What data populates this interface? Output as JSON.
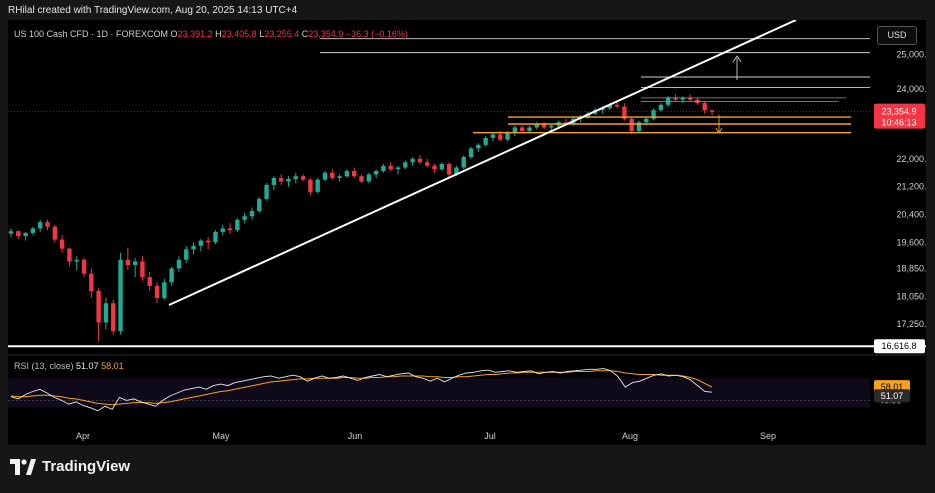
{
  "header": {
    "attribution": "RHilal created with TradingView.com, Aug 20, 2025 14:13 UTC+4"
  },
  "legend": {
    "symbol": "US 100 Cash CFD · 1D · FOREXCOM",
    "o_label": "O",
    "o": "23,391.2",
    "h_label": "H",
    "h": "23,405.8",
    "l_label": "L",
    "l": "23,255.4",
    "c_label": "C",
    "c": "23,354.9",
    "change": "−36.3 (−0.16%)"
  },
  "currency": "USD",
  "price_axis": {
    "ticks": [
      "25,000.0",
      "24,000.0",
      "22,000.0",
      "21,200.0",
      "20,400.0",
      "19,600.0",
      "18,850.0",
      "18,050.0",
      "17,250.0"
    ],
    "tick_values": [
      25000,
      24000,
      22000,
      21200,
      20400,
      19600,
      18850,
      18050,
      17250
    ],
    "last_price_label": "23,354.9",
    "countdown": "10:46:13",
    "support_label": "16,616.8"
  },
  "rsi": {
    "label": "RSI (13, close)",
    "value": "51.07",
    "ma_value": "58.01",
    "axis_label": "40.00"
  },
  "time_axis": {
    "labels": [
      "Apr",
      "May",
      "Jun",
      "Jul",
      "Aug",
      "Sep"
    ]
  },
  "colors": {
    "up": "#22ab94",
    "down": "#f23645",
    "rsi": "#e8e8e8",
    "rsi_ma": "#f7a21b",
    "level": "#f7a21b",
    "trend": "#ffffff"
  },
  "brand": "TradingView",
  "chart_data": {
    "type": "candlestick",
    "timeframe": "1D",
    "last_close": 23354.9,
    "support_level": 16616.8,
    "candles": [
      [
        19850,
        20000,
        19750,
        19920
      ],
      [
        19920,
        19950,
        19700,
        19780
      ],
      [
        19780,
        19900,
        19650,
        19870
      ],
      [
        19870,
        20050,
        19800,
        20000
      ],
      [
        20000,
        20250,
        19900,
        20180
      ],
      [
        20180,
        20250,
        19950,
        20050
      ],
      [
        20050,
        20100,
        19600,
        19680
      ],
      [
        19680,
        19800,
        19300,
        19420
      ],
      [
        19420,
        19450,
        18900,
        19050
      ],
      [
        19050,
        19200,
        18800,
        19100
      ],
      [
        19100,
        19150,
        18600,
        18700
      ],
      [
        18700,
        18850,
        18000,
        18200
      ],
      [
        18200,
        18300,
        16750,
        17300
      ],
      [
        17300,
        18000,
        17100,
        17850
      ],
      [
        17850,
        17950,
        16950,
        17050
      ],
      [
        17050,
        19300,
        16950,
        19100
      ],
      [
        19100,
        19450,
        18800,
        18950
      ],
      [
        18950,
        19150,
        18600,
        19050
      ],
      [
        19050,
        19200,
        18500,
        18600
      ],
      [
        18600,
        18750,
        18200,
        18350
      ],
      [
        18350,
        18450,
        17850,
        18000
      ],
      [
        18000,
        18550,
        17950,
        18450
      ],
      [
        18450,
        18900,
        18350,
        18850
      ],
      [
        18850,
        19200,
        18750,
        19100
      ],
      [
        19100,
        19500,
        19000,
        19400
      ],
      [
        19400,
        19600,
        19250,
        19500
      ],
      [
        19500,
        19700,
        19350,
        19650
      ],
      [
        19650,
        19750,
        19400,
        19600
      ],
      [
        19600,
        19950,
        19550,
        19900
      ],
      [
        19900,
        20100,
        19800,
        20000
      ],
      [
        20000,
        20150,
        19850,
        19950
      ],
      [
        19950,
        20300,
        19900,
        20250
      ],
      [
        20250,
        20450,
        20150,
        20350
      ],
      [
        20350,
        20600,
        20250,
        20500
      ],
      [
        20500,
        20900,
        20450,
        20850
      ],
      [
        20850,
        21300,
        20800,
        21250
      ],
      [
        21250,
        21500,
        21100,
        21450
      ],
      [
        21450,
        21550,
        21250,
        21350
      ],
      [
        21350,
        21500,
        21200,
        21420
      ],
      [
        21420,
        21600,
        21300,
        21500
      ],
      [
        21500,
        21550,
        21350,
        21400
      ],
      [
        21400,
        21450,
        20950,
        21050
      ],
      [
        21050,
        21450,
        21000,
        21400
      ],
      [
        21400,
        21650,
        21350,
        21600
      ],
      [
        21600,
        21700,
        21400,
        21450
      ],
      [
        21450,
        21550,
        21350,
        21500
      ],
      [
        21500,
        21700,
        21450,
        21650
      ],
      [
        21650,
        21750,
        21450,
        21500
      ],
      [
        21500,
        21550,
        21300,
        21350
      ],
      [
        21350,
        21600,
        21300,
        21550
      ],
      [
        21550,
        21700,
        21450,
        21650
      ],
      [
        21650,
        21850,
        21600,
        21800
      ],
      [
        21800,
        21900,
        21650,
        21700
      ],
      [
        21700,
        21800,
        21550,
        21750
      ],
      [
        21750,
        21950,
        21700,
        21900
      ],
      [
        21900,
        22050,
        21800,
        22000
      ],
      [
        22000,
        22100,
        21850,
        21900
      ],
      [
        21900,
        22000,
        21750,
        21800
      ],
      [
        21800,
        21850,
        21600,
        21700
      ],
      [
        21700,
        21900,
        21650,
        21850
      ],
      [
        21850,
        21900,
        21450,
        21550
      ],
      [
        21550,
        21800,
        21500,
        21750
      ],
      [
        21750,
        22100,
        21700,
        22050
      ],
      [
        22050,
        22350,
        22000,
        22300
      ],
      [
        22300,
        22450,
        22200,
        22400
      ],
      [
        22400,
        22650,
        22350,
        22600
      ],
      [
        22600,
        22750,
        22500,
        22700
      ],
      [
        22700,
        22800,
        22500,
        22550
      ],
      [
        22550,
        22800,
        22500,
        22750
      ],
      [
        22750,
        22950,
        22650,
        22900
      ],
      [
        22900,
        22950,
        22750,
        22800
      ],
      [
        22800,
        22950,
        22750,
        22900
      ],
      [
        22900,
        23050,
        22850,
        23000
      ],
      [
        23000,
        23050,
        22850,
        22900
      ],
      [
        22900,
        23000,
        22800,
        22950
      ],
      [
        22950,
        23100,
        22900,
        23050
      ],
      [
        23050,
        23150,
        22950,
        23000
      ],
      [
        23000,
        23200,
        22950,
        23150
      ],
      [
        23150,
        23250,
        23050,
        23200
      ],
      [
        23200,
        23350,
        23150,
        23300
      ],
      [
        23300,
        23450,
        23250,
        23400
      ],
      [
        23400,
        23500,
        23300,
        23450
      ],
      [
        23450,
        23600,
        23400,
        23550
      ],
      [
        23550,
        23650,
        23450,
        23500
      ],
      [
        23500,
        23600,
        23100,
        23150
      ],
      [
        23150,
        23200,
        22700,
        22800
      ],
      [
        22800,
        23100,
        22750,
        23050
      ],
      [
        23050,
        23200,
        22950,
        23150
      ],
      [
        23150,
        23450,
        23100,
        23400
      ],
      [
        23400,
        23600,
        23350,
        23550
      ],
      [
        23550,
        23800,
        23500,
        23750
      ],
      [
        23750,
        23850,
        23650,
        23700
      ],
      [
        23700,
        23800,
        23600,
        23750
      ],
      [
        23750,
        23850,
        23650,
        23700
      ],
      [
        23700,
        23750,
        23550,
        23600
      ],
      [
        23600,
        23650,
        23300,
        23391
      ],
      [
        23391.2,
        23405.8,
        23255.4,
        23354.9
      ]
    ],
    "horizontal_levels_orange": [
      23200,
      23000,
      22750
    ],
    "horizontal_levels_white": [
      25450,
      25050,
      24350,
      24050
    ],
    "rsi_values": [
      45,
      42,
      48,
      52,
      55,
      50,
      44,
      40,
      35,
      38,
      33,
      30,
      26,
      32,
      28,
      44,
      40,
      42,
      38,
      35,
      32,
      40,
      46,
      50,
      54,
      56,
      58,
      55,
      60,
      62,
      60,
      64,
      66,
      68,
      70,
      72,
      73,
      70,
      72,
      74,
      72,
      66,
      70,
      73,
      70,
      71,
      73,
      70,
      67,
      71,
      73,
      75,
      72,
      74,
      76,
      77,
      72,
      70,
      66,
      70,
      65,
      70,
      74,
      77,
      78,
      80,
      81,
      78,
      79,
      80,
      78,
      79,
      80,
      76,
      78,
      79,
      77,
      79,
      80,
      81,
      82,
      82,
      83,
      80,
      72,
      58,
      64,
      66,
      70,
      74,
      76,
      73,
      74,
      72,
      68,
      60,
      52,
      51.07
    ],
    "rsi_ma_values": [
      46,
      45,
      45,
      46,
      47,
      47,
      46,
      45,
      43,
      42,
      40,
      38,
      36,
      35,
      34,
      35,
      36,
      37,
      37,
      37,
      36,
      37,
      38,
      40,
      42,
      44,
      46,
      48,
      50,
      52,
      53,
      55,
      57,
      59,
      61,
      63,
      65,
      66,
      67,
      68,
      69,
      69,
      70,
      70,
      70,
      70,
      71,
      71,
      70,
      70,
      71,
      71,
      72,
      72,
      73,
      73,
      73,
      73,
      72,
      72,
      71,
      71,
      72,
      72,
      73,
      74,
      75,
      75,
      76,
      77,
      77,
      78,
      78,
      78,
      78,
      78,
      78,
      78,
      79,
      79,
      79,
      80,
      80,
      80,
      79,
      77,
      76,
      75,
      75,
      75,
      74,
      74,
      74,
      73,
      71,
      68,
      63,
      58.01
    ],
    "rsi_level": 40
  }
}
